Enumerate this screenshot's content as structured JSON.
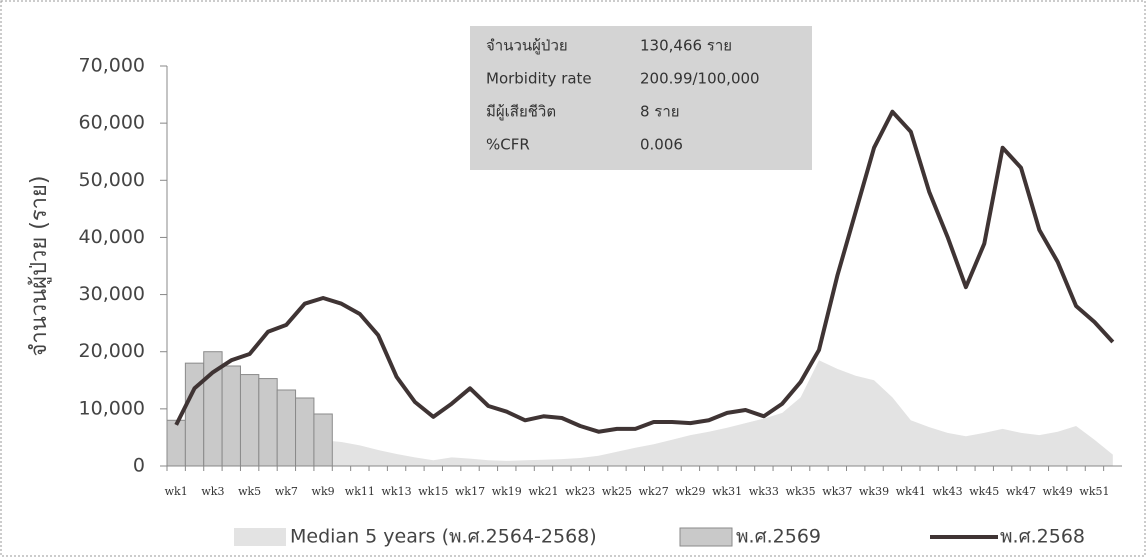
{
  "chart_data": {
    "type": "combo",
    "y_label": "จำนวนผู้ป่วย (ราย)",
    "categories": [
      "wk1",
      null,
      "wk3",
      null,
      "wk5",
      null,
      "wk7",
      null,
      "wk9",
      null,
      "wk11",
      null,
      "wk13",
      null,
      "wk15",
      null,
      "wk17",
      null,
      "wk19",
      null,
      "wk21",
      null,
      "wk23",
      null,
      "wk25",
      null,
      "wk27",
      null,
      "wk29",
      null,
      "wk31",
      null,
      "wk33",
      null,
      "wk35",
      null,
      "wk37",
      null,
      "wk39",
      null,
      "wk41",
      null,
      "wk43",
      null,
      "wk45",
      null,
      "wk47",
      null,
      "wk49",
      null,
      "wk51",
      null
    ],
    "ylim": [
      0,
      70000
    ],
    "yticks": [
      0,
      {
        "value": 10000,
        "label": "10,000"
      },
      {
        "value": 20000,
        "label": "20,000"
      },
      {
        "value": 30000,
        "label": "30,000"
      },
      {
        "value": 40000,
        "label": "40,000"
      },
      {
        "value": 50000,
        "label": "50,000"
      },
      {
        "value": 60000,
        "label": "60,000"
      },
      {
        "value": 70000,
        "label": "70,000"
      }
    ],
    "series": [
      {
        "name": "Median 5 years (พ.ศ.2564-2568)",
        "kind": "area",
        "color": "#e3e3e3",
        "values": [
          8000,
          7500,
          7000,
          6500,
          6000,
          5500,
          5000,
          4800,
          4500,
          4200,
          3600,
          2800,
          2100,
          1500,
          1000,
          1500,
          1300,
          1000,
          900,
          1000,
          1100,
          1200,
          1400,
          1800,
          2500,
          3200,
          3800,
          4600,
          5400,
          6000,
          6700,
          7500,
          8300,
          9300,
          12000,
          18500,
          17000,
          15800,
          15000,
          12000,
          8000,
          6800,
          5800,
          5200,
          5800,
          6500,
          5800,
          5400,
          6000,
          7000,
          4600,
          2000
        ]
      },
      {
        "name": "พ.ศ.2569",
        "kind": "bar",
        "color": "#c9c9c9",
        "values": [
          8000,
          18000,
          20000,
          17500,
          16000,
          15300,
          13300,
          11900,
          9100,
          null,
          null,
          null,
          null,
          null,
          null,
          null,
          null,
          null,
          null,
          null,
          null,
          null,
          null,
          null,
          null,
          null,
          null,
          null,
          null,
          null,
          null,
          null,
          null,
          null,
          null,
          null,
          null,
          null,
          null,
          null,
          null,
          null,
          null,
          null,
          null,
          null,
          null,
          null,
          null,
          null,
          null,
          null
        ]
      },
      {
        "name": "พ.ศ.2568",
        "kind": "line",
        "color": "#3f3434",
        "values": [
          7200,
          13600,
          16400,
          18500,
          19600,
          23500,
          24700,
          28400,
          29400,
          28400,
          26600,
          22900,
          15600,
          11200,
          8600,
          10900,
          13600,
          10500,
          9500,
          8000,
          8700,
          8400,
          7000,
          6000,
          6500,
          6500,
          7700,
          7700,
          7500,
          8000,
          9300,
          9800,
          8700,
          10900,
          14700,
          20300,
          33300,
          44500,
          55700,
          62000,
          58500,
          48000,
          40100,
          31300,
          38900,
          55700,
          52200,
          41300,
          35700,
          28000,
          25200,
          21700
        ]
      }
    ],
    "annotations": [
      {
        "label": "จำนวนผู้ป่วย",
        "value": "130,466 ราย"
      },
      {
        "label": "Morbidity rate",
        "value": "200.99/100,000"
      },
      {
        "label": "มีผู้เสียชีวิต",
        "value": "8 ราย"
      },
      {
        "label": "%CFR",
        "value": "0.006"
      }
    ]
  }
}
